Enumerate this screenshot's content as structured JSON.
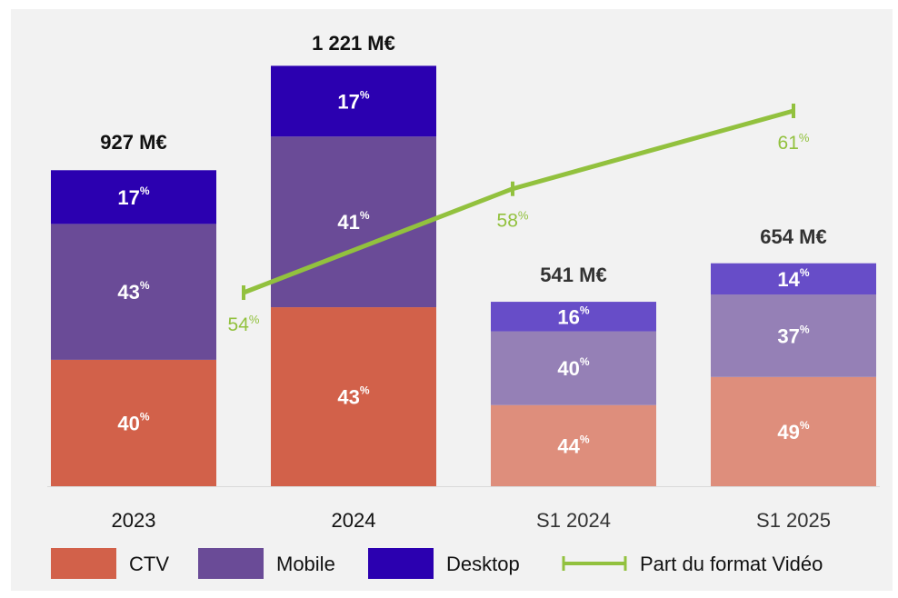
{
  "colors": {
    "panel_bg": "#f2f2f2",
    "line": "#92c13e",
    "text_dark": "#111111",
    "text_muted": "#333333"
  },
  "chart_data": {
    "type": "bar",
    "stacked": true,
    "categories": [
      "2023",
      "2024",
      "S1 2024",
      "S1 2025"
    ],
    "category_style": [
      "solid",
      "solid",
      "faded",
      "faded"
    ],
    "totals": [
      927,
      1221,
      541,
      654
    ],
    "total_labels": [
      "927 M€",
      "1 221 M€",
      "541 M€",
      "654 M€"
    ],
    "series": [
      {
        "name": "CTV",
        "percent": [
          40,
          43,
          44,
          49
        ],
        "color": "#d2614a",
        "color_faded": "#de8e7c"
      },
      {
        "name": "Mobile",
        "percent": [
          43,
          41,
          40,
          37
        ],
        "color": "#6a4b97",
        "color_faded": "#9580b6"
      },
      {
        "name": "Desktop",
        "percent": [
          17,
          17,
          16,
          14
        ],
        "color": "#2b00b0",
        "color_faded": "#674dc8"
      }
    ],
    "line_series": {
      "name": "Part du format Vidéo",
      "values": [
        54,
        58,
        61
      ],
      "points_between": [
        "2023-2024",
        "2024-S1 2024",
        "S1 2024-S1 2025"
      ],
      "unit": "%",
      "color": "#92c13e"
    },
    "percent_suffix": "%",
    "legend": [
      "CTV",
      "Mobile",
      "Desktop",
      "Part du format Vidéo"
    ],
    "legend_position": "bottom",
    "grid": false,
    "ylim": [
      0,
      1300
    ]
  }
}
